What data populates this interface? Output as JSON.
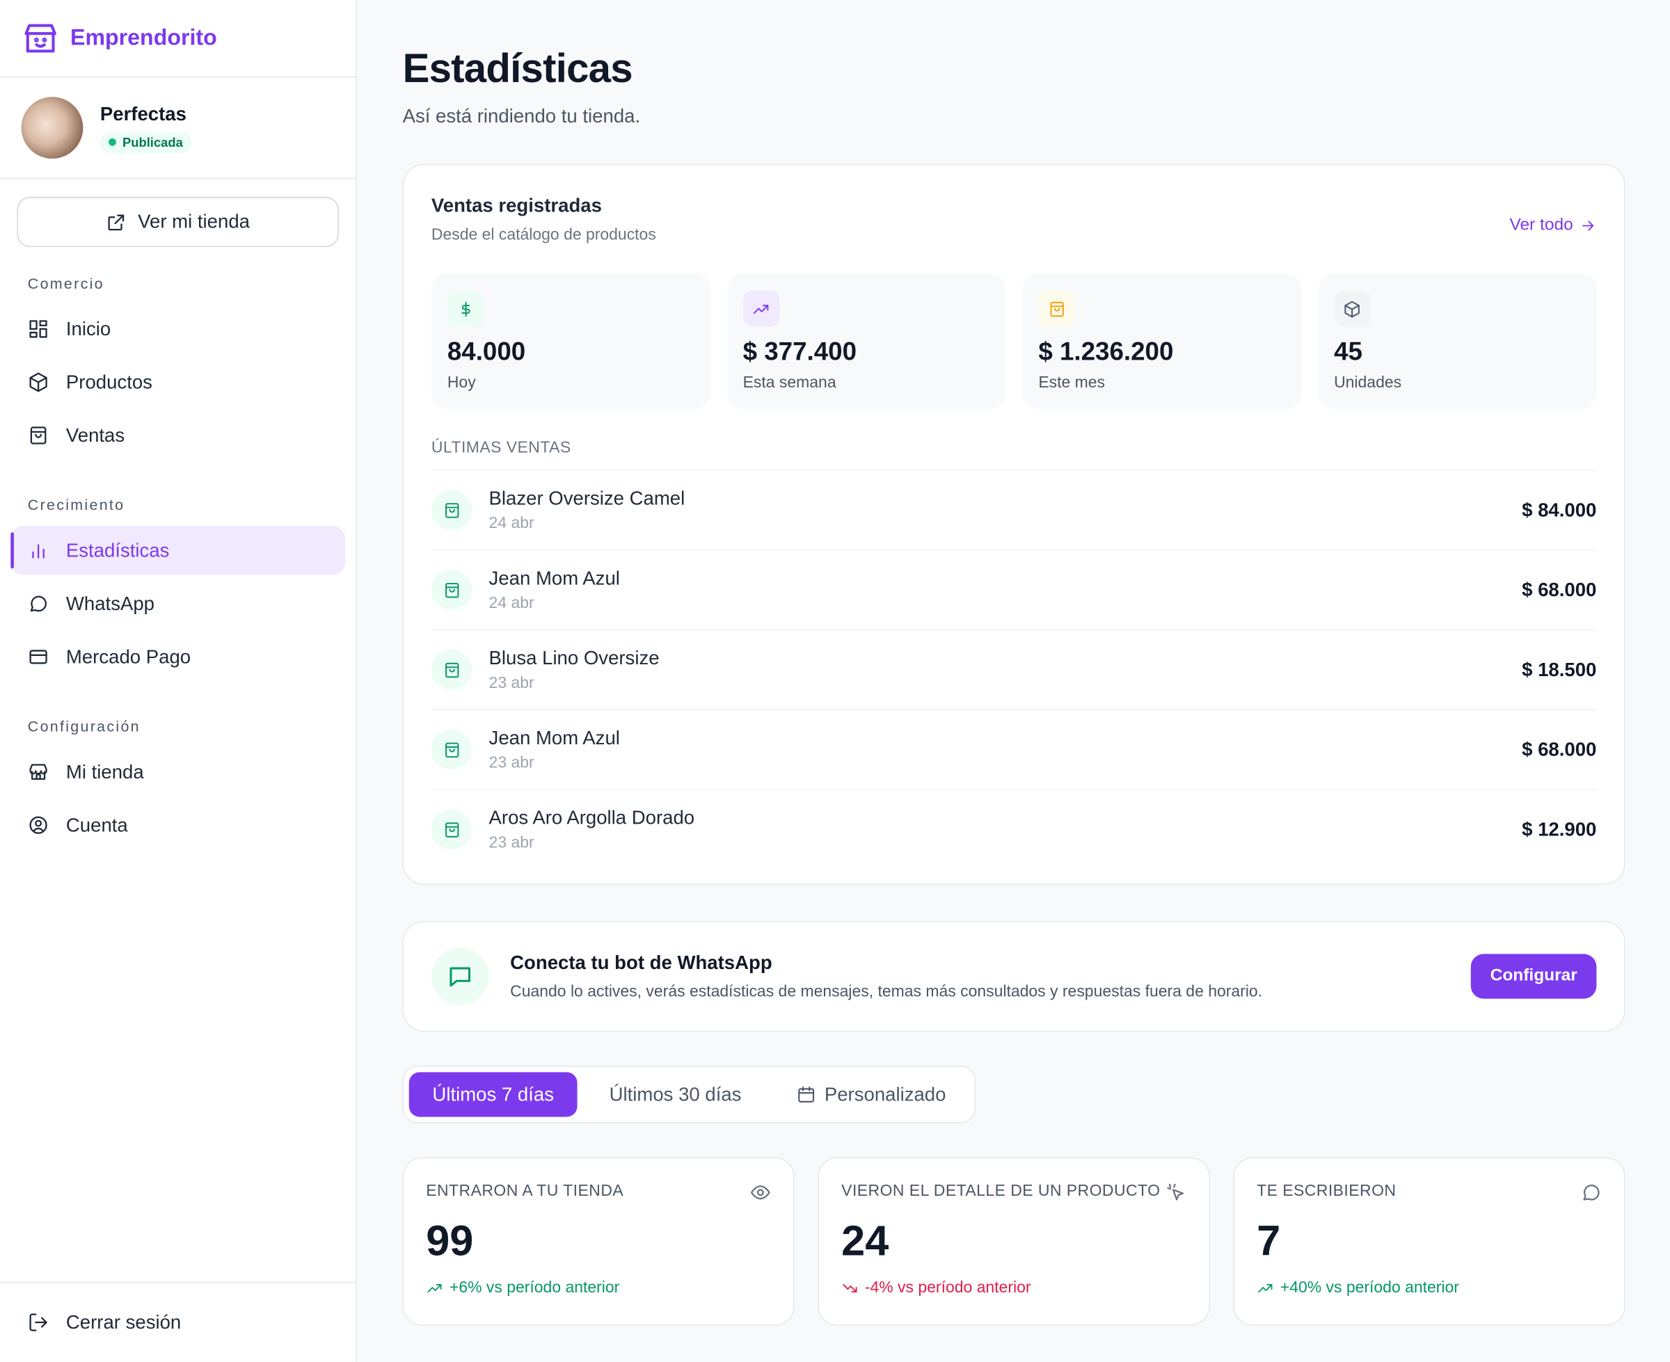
{
  "sidebar": {
    "brand": "Emprendorito",
    "store": {
      "name": "Perfectas",
      "status": "Publicada"
    },
    "view_store": "Ver mi tienda",
    "sections": [
      {
        "title": "Comercio",
        "items": [
          "Inicio",
          "Productos",
          "Ventas"
        ]
      },
      {
        "title": "Crecimiento",
        "items": [
          "Estadísticas",
          "WhatsApp",
          "Mercado Pago"
        ]
      },
      {
        "title": "Configuración",
        "items": [
          "Mi tienda",
          "Cuenta"
        ]
      }
    ],
    "logout": "Cerrar sesión"
  },
  "header": {
    "title": "Estadísticas",
    "subtitle": "Así está rindiendo tu tienda."
  },
  "sales": {
    "title": "Ventas registradas",
    "subtitle": "Desde el catálogo de productos",
    "link": "Ver todo",
    "summary": [
      {
        "value": "84.000",
        "label": "Hoy"
      },
      {
        "value": "$ 377.400",
        "label": "Esta semana"
      },
      {
        "value": "$ 1.236.200",
        "label": "Este mes"
      },
      {
        "value": "45",
        "label": "Unidades"
      }
    ],
    "recent_title": "ÚLTIMAS VENTAS",
    "rows": [
      {
        "product": "Blazer Oversize Camel",
        "date": "24 abr",
        "amount": "$ 84.000"
      },
      {
        "product": "Jean Mom Azul",
        "date": "24 abr",
        "amount": "$ 68.000"
      },
      {
        "product": "Blusa Lino Oversize",
        "date": "23 abr",
        "amount": "$ 18.500"
      },
      {
        "product": "Jean Mom Azul",
        "date": "23 abr",
        "amount": "$ 68.000"
      },
      {
        "product": "Aros Aro Argolla Dorado",
        "date": "23 abr",
        "amount": "$ 12.900"
      }
    ]
  },
  "whatsapp": {
    "title": "Conecta tu bot de WhatsApp",
    "text": "Cuando lo actives, verás estadísticas de mensajes, temas más consultados y respuestas fuera de horario.",
    "button": "Configurar"
  },
  "range_tabs": [
    "Últimos 7 días",
    "Últimos 30 días",
    "Personalizado"
  ],
  "metrics": [
    {
      "label": "ENTRARON A TU TIENDA",
      "value": "99",
      "change": "+6% vs período anterior"
    },
    {
      "label": "VIERON EL DETALLE DE UN PRODUCTO",
      "value": "24",
      "change": "-4% vs período anterior"
    },
    {
      "label": "TE ESCRIBIERON",
      "value": "7",
      "change": "+40% vs período anterior"
    }
  ]
}
